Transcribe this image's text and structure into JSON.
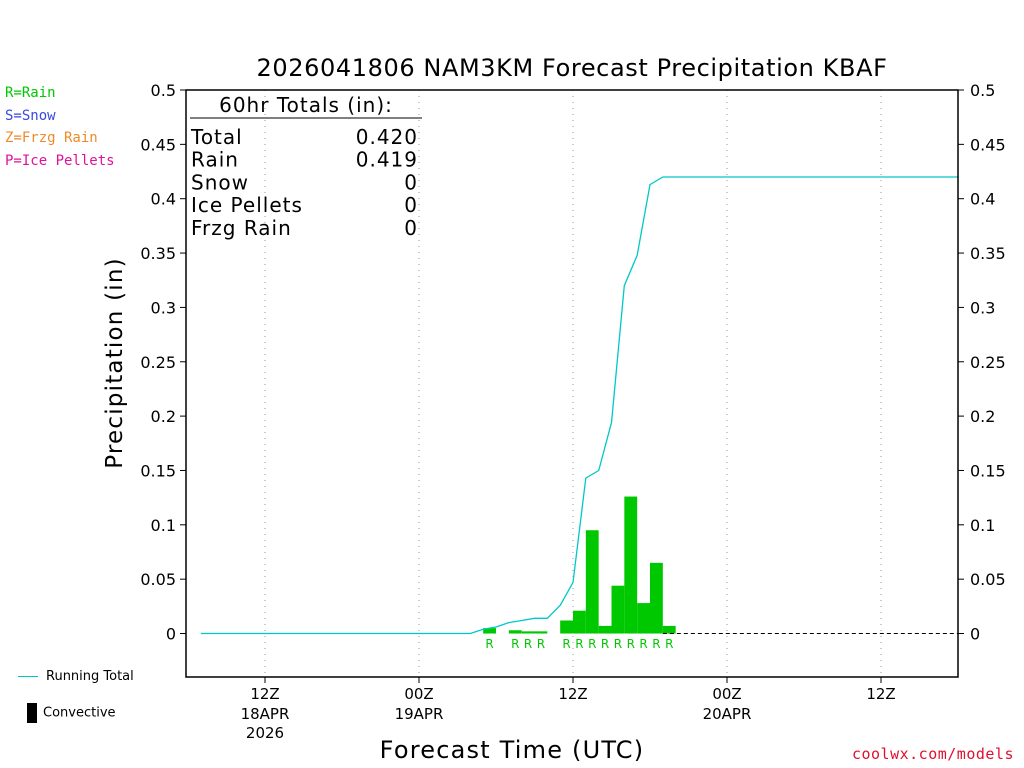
{
  "legend": {
    "types": [
      {
        "label": "R=Rain",
        "color": "#00c800"
      },
      {
        "label": "S=Snow",
        "color": "#3a48e0"
      },
      {
        "label": "Z=Frzg Rain",
        "color": "#ee8a28"
      },
      {
        "label": "P=Ice Pellets",
        "color": "#e0109a"
      }
    ],
    "running_total_label": "Running Total",
    "convective_label": "Convective"
  },
  "credit": "coolwx.com/models",
  "chart_data": {
    "type": "bar",
    "title": "2026041806 NAM3KM Forecast Precipitation KBAF",
    "xlabel": "Forecast Time (UTC)",
    "ylabel": "Precipitation (in)",
    "ylim": [
      -0.04,
      0.5
    ],
    "y_ticks": [
      0,
      0.05,
      0.1,
      0.15,
      0.2,
      0.25,
      0.3,
      0.35,
      0.4,
      0.45,
      0.5
    ],
    "y_tick_labels": [
      "0",
      "0.05",
      "0.1",
      "0.15",
      "0.2",
      "0.25",
      "0.3",
      "0.35",
      "0.4",
      "0.45",
      "0.5"
    ],
    "xlim_hours": [
      0,
      60
    ],
    "x_ticks": [
      {
        "hour": 6,
        "label": "12Z",
        "sublabel": "18APR",
        "sublabel2": "2026"
      },
      {
        "hour": 18,
        "label": "00Z",
        "sublabel": "19APR",
        "sublabel2": ""
      },
      {
        "hour": 30,
        "label": "12Z",
        "sublabel": "",
        "sublabel2": ""
      },
      {
        "hour": 42,
        "label": "00Z",
        "sublabel": "20APR",
        "sublabel2": ""
      },
      {
        "hour": 54,
        "label": "12Z",
        "sublabel": "",
        "sublabel2": ""
      }
    ],
    "grid": "vertical dotted at x ticks",
    "totals_box": {
      "heading": "60hr Totals (in):",
      "rows": [
        {
          "label": "Total",
          "value": "0.420"
        },
        {
          "label": "Rain",
          "value": "0.419"
        },
        {
          "label": "Snow",
          "value": "0"
        },
        {
          "label": "Ice Pellets",
          "value": "0"
        },
        {
          "label": "Frzg Rain",
          "value": "0"
        }
      ]
    },
    "bars": {
      "color": "#00c800",
      "hour_start": [
        23,
        25,
        26,
        27,
        29,
        30,
        31,
        32,
        33,
        34,
        35,
        36,
        37
      ],
      "values": [
        0.005,
        0.003,
        0.002,
        0.002,
        0.012,
        0.021,
        0.095,
        0.007,
        0.044,
        0.126,
        0.028,
        0.065,
        0.007
      ],
      "type_codes": [
        "R",
        "R",
        "R",
        "R",
        "R",
        "R",
        "R",
        "R",
        "R",
        "R",
        "R",
        "R",
        "R"
      ]
    },
    "running_total": {
      "color": "#00c8c8",
      "hours": [
        1,
        22,
        23,
        24,
        25,
        26,
        27,
        28,
        29,
        30,
        31,
        32,
        33,
        34,
        35,
        36,
        37,
        38,
        60
      ],
      "values": [
        0,
        0,
        0.004,
        0.006,
        0.01,
        0.012,
        0.014,
        0.014,
        0.026,
        0.047,
        0.143,
        0.15,
        0.194,
        0.32,
        0.348,
        0.413,
        0.42,
        0.42,
        0.42
      ]
    }
  }
}
